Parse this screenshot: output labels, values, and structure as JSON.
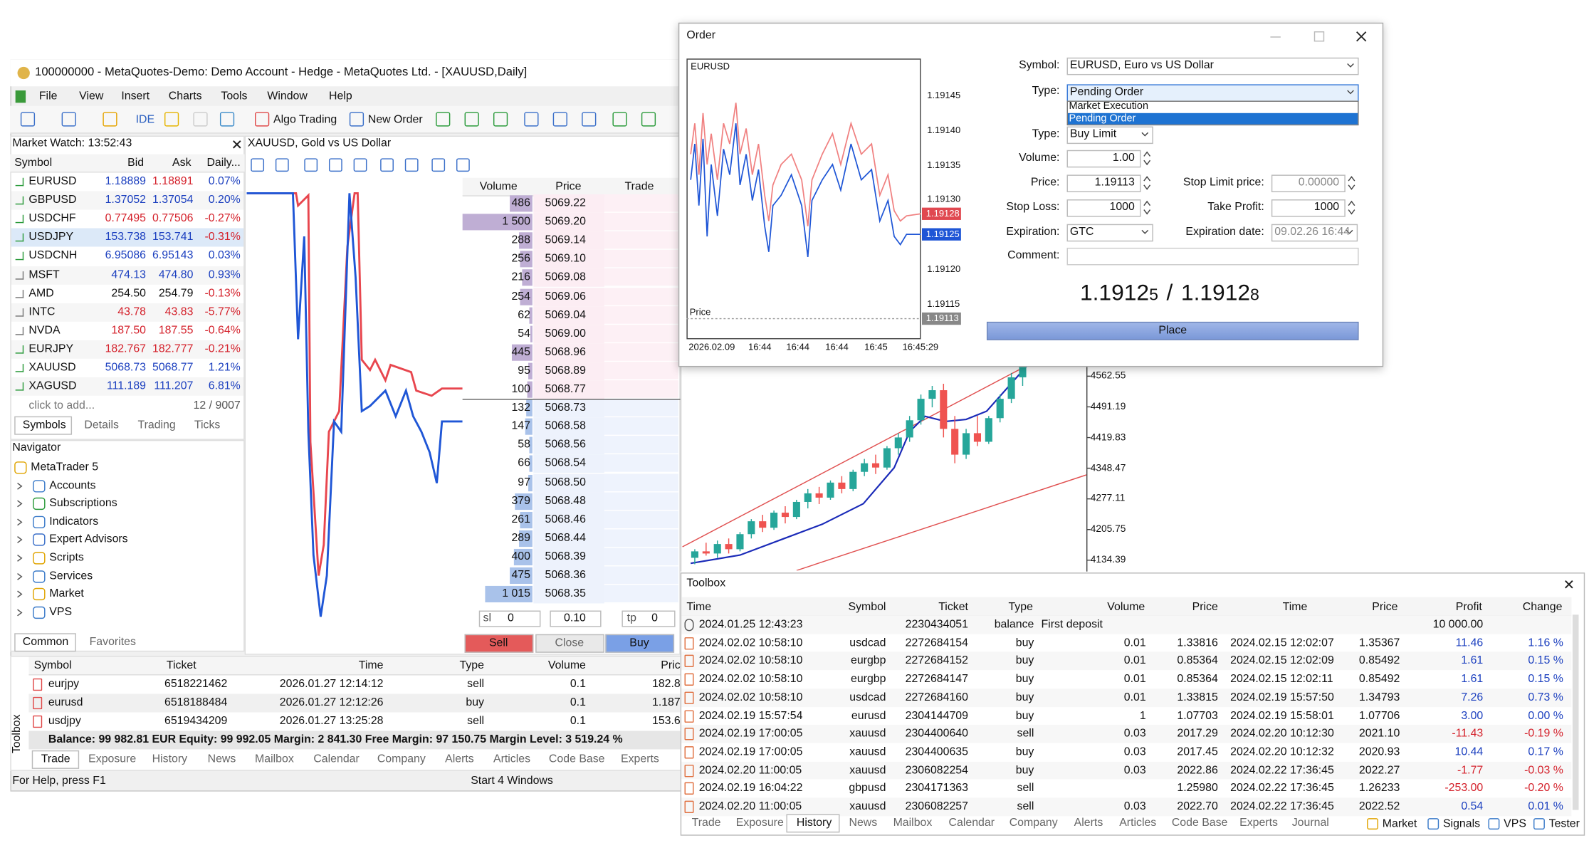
{
  "main_window": {
    "title": "100000000 - MetaQuotes-Demo: Demo Account - Hedge - MetaQuotes Ltd. - [XAUUSD,Daily]",
    "menu": [
      "File",
      "View",
      "Insert",
      "Charts",
      "Tools",
      "Window",
      "Help"
    ],
    "toolbar": [
      "IDE",
      "Algo Trading",
      "New Order"
    ],
    "market_watch": {
      "title": "Market Watch: 13:52:43",
      "columns": [
        "Symbol",
        "Bid",
        "Ask",
        "Daily..."
      ],
      "rows": [
        [
          "EURUSD",
          "1.18889",
          "1.18891",
          "0.07%"
        ],
        [
          "GBPUSD",
          "1.37052",
          "1.37054",
          "0.20%"
        ],
        [
          "USDCHF",
          "0.77495",
          "0.77506",
          "-0.27%"
        ],
        [
          "USDJPY",
          "153.738",
          "153.741",
          "-0.31%"
        ],
        [
          "USDCNH",
          "6.95086",
          "6.95143",
          "0.03%"
        ],
        [
          "MSFT",
          "474.13",
          "474.80",
          "0.93%"
        ],
        [
          "AMD",
          "254.50",
          "254.79",
          "-0.13%"
        ],
        [
          "INTC",
          "43.78",
          "43.83",
          "-5.77%"
        ],
        [
          "NVDA",
          "187.50",
          "187.55",
          "-0.64%"
        ],
        [
          "EURJPY",
          "182.767",
          "182.777",
          "-0.21%"
        ],
        [
          "XAUUSD",
          "5068.73",
          "5068.77",
          "1.21%"
        ],
        [
          "XAGUSD",
          "111.189",
          "111.207",
          "6.81%"
        ]
      ],
      "add": "click to add...",
      "count": "12 / 9007",
      "tabs": [
        "Symbols",
        "Details",
        "Trading",
        "Ticks"
      ]
    },
    "navigator": {
      "title": "Navigator",
      "items": [
        "MetaTrader 5",
        "Accounts",
        "Subscriptions",
        "Indicators",
        "Expert Advisors",
        "Scripts",
        "Services",
        "Market",
        "VPS"
      ],
      "tabs": [
        "Common",
        "Favorites"
      ]
    },
    "chart": {
      "title": "XAUUSD, Gold vs US Dollar"
    },
    "depth_of_market": {
      "columns": [
        "Volume",
        "Price",
        "Trade"
      ],
      "rows": [
        {
          "volume": 486,
          "price": "5069.22"
        },
        {
          "volume": {
            "value": 1500,
            "label": "1 500"
          },
          "price": "5069.20"
        },
        {
          "volume": 288,
          "price": "5069.14"
        },
        {
          "volume": 256,
          "price": "5069.10"
        },
        {
          "volume": 216,
          "price": "5069.08"
        },
        {
          "volume": 254,
          "price": "5069.06"
        },
        {
          "volume": 62,
          "price": "5069.04"
        },
        {
          "volume": 54,
          "price": "5069.00"
        },
        {
          "volume": 445,
          "price": "5068.96"
        },
        {
          "volume": 95,
          "price": "5068.89"
        },
        {
          "volume": 100,
          "price": "5068.77"
        },
        {
          "volume": 132,
          "price": "5068.73"
        },
        {
          "volume": 147,
          "price": "5068.58"
        },
        {
          "volume": 58,
          "price": "5068.56"
        },
        {
          "volume": 66,
          "price": "5068.54"
        },
        {
          "volume": 97,
          "price": "5068.50"
        },
        {
          "volume": 379,
          "price": "5068.48"
        },
        {
          "volume": 261,
          "price": "5068.46"
        },
        {
          "volume": 289,
          "price": "5068.44"
        },
        {
          "volume": 400,
          "price": "5068.39"
        },
        {
          "volume": 475,
          "price": "5068.36"
        },
        {
          "volume": {
            "value": 1015,
            "label": "1 015"
          },
          "price": "5068.35"
        }
      ],
      "sell_rows": 11,
      "sl_label": "sl",
      "sl_value": "0",
      "lot": "0.10",
      "tp_label": "tp",
      "tp_value": "0",
      "buttons": [
        "Sell",
        "Close",
        "Buy"
      ]
    },
    "trade": {
      "columns": [
        "Symbol",
        "Ticket",
        "Time",
        "Type",
        "Volume",
        "Price"
      ],
      "rows": [
        [
          "eurjpy",
          "6518221462",
          "2026.01.27 12:14:12",
          "sell",
          "0.1",
          "182.8"
        ],
        [
          "eurusd",
          "6518188484",
          "2026.01.27 12:12:26",
          "buy",
          "0.1",
          "1.187"
        ],
        [
          "usdjpy",
          "6519434209",
          "2026.01.27 13:25:28",
          "sell",
          "0.1",
          "153.6"
        ]
      ],
      "balance": "Balance: 99 982.81 EUR  Equity: 99 992.05  Margin: 2 841.30  Free Margin: 97 150.75  Margin Level: 3 519.24 %",
      "side_label": "Toolbox",
      "tabs": [
        "Trade",
        "Exposure",
        "History",
        "News",
        "Mailbox",
        "Calendar",
        "Company",
        "Alerts",
        "Articles",
        "Code Base",
        "Experts"
      ]
    },
    "status": [
      "For Help, press F1",
      "Start 4 Windows"
    ]
  },
  "background_chart": {
    "type": "candlestick",
    "ylim": [
      4110.47,
      4586.47
    ],
    "yticks": [
      {
        "value": 4562.55,
        "label": "4562.55"
      },
      {
        "value": 4491.19,
        "label": "4491.19"
      },
      {
        "value": 4419.83,
        "label": "4419.83"
      },
      {
        "value": 4348.47,
        "label": "4348.47"
      },
      {
        "value": 4277.11,
        "label": "4277.11"
      },
      {
        "value": 4205.75,
        "label": "4205.75"
      },
      {
        "value": 4134.39,
        "label": "4134.39"
      }
    ],
    "colors": {
      "up": "#26a69a",
      "down": "#ef5350"
    },
    "candles": [
      [
        4140,
        4160,
        4125,
        4155
      ],
      [
        4155,
        4175,
        4145,
        4150
      ],
      [
        4150,
        4180,
        4140,
        4172
      ],
      [
        4172,
        4185,
        4150,
        4160
      ],
      [
        4160,
        4200,
        4155,
        4195
      ],
      [
        4195,
        4230,
        4185,
        4225
      ],
      [
        4225,
        4240,
        4200,
        4210
      ],
      [
        4210,
        4250,
        4205,
        4245
      ],
      [
        4245,
        4260,
        4220,
        4235
      ],
      [
        4235,
        4275,
        4230,
        4270
      ],
      [
        4270,
        4300,
        4255,
        4290
      ],
      [
        4290,
        4305,
        4265,
        4280
      ],
      [
        4280,
        4320,
        4275,
        4315
      ],
      [
        4315,
        4330,
        4290,
        4300
      ],
      [
        4300,
        4345,
        4295,
        4340
      ],
      [
        4340,
        4370,
        4330,
        4360
      ],
      [
        4360,
        4380,
        4335,
        4350
      ],
      [
        4350,
        4400,
        4345,
        4395
      ],
      [
        4395,
        4430,
        4380,
        4420
      ],
      [
        4420,
        4470,
        4410,
        4460
      ],
      [
        4460,
        4520,
        4450,
        4510
      ],
      [
        4510,
        4540,
        4490,
        4530
      ],
      [
        4530,
        4545,
        4420,
        4440
      ],
      [
        4440,
        4470,
        4360,
        4380
      ],
      [
        4380,
        4440,
        4370,
        4430
      ],
      [
        4430,
        4470,
        4400,
        4410
      ],
      [
        4410,
        4470,
        4405,
        4465
      ],
      [
        4465,
        4520,
        4455,
        4510
      ],
      [
        4510,
        4570,
        4500,
        4560
      ],
      [
        4560,
        4600,
        4540,
        4590
      ]
    ]
  },
  "order_dialog": {
    "title": "Order",
    "mini_chart": {
      "symbol": "EURUSD",
      "price_ticks": [
        "1.19145",
        "1.19140",
        "1.19135",
        "1.19130",
        "1.19120",
        "1.19115"
      ],
      "ask_marker": "1.19128",
      "bid_marker": "1.19125",
      "last_marker": "1.19113",
      "price_label": "Price",
      "time_labels": [
        "2026.02.09",
        "16:44",
        "16:44",
        "16:44",
        "16:45",
        "16:45:29"
      ]
    },
    "fields": {
      "symbol_label": "Symbol:",
      "symbol": "EURUSD, Euro vs US Dollar",
      "type_label": "Type:",
      "type": "Pending Order",
      "type_options": [
        "Market Execution",
        "Pending Order"
      ],
      "order_type_label": "Type:",
      "order_type": "Buy Limit",
      "volume_label": "Volume:",
      "volume": "1.00",
      "price_label": "Price:",
      "price": "1.19113",
      "stop_limit_label": "Stop Limit price:",
      "stop_limit": "0.00000",
      "sl_label": "Stop Loss:",
      "sl": "1000",
      "tp_label": "Take Profit:",
      "tp": "1000",
      "expiration_label": "Expiration:",
      "expiration": "GTC",
      "expiration_date_label": "Expiration date:",
      "expiration_date": "09.02.26 16:44",
      "comment_label": "Comment:"
    },
    "quote": {
      "bid": "1.1912",
      "bid_small": "5",
      "sep": "/",
      "ask": "1.1912",
      "ask_small": "8"
    },
    "button": "Place"
  },
  "toolbox": {
    "title": "Toolbox",
    "columns": [
      "Time",
      "Symbol",
      "Ticket",
      "Type",
      "Volume",
      "Price",
      "Time",
      "Price",
      "Profit",
      "Change"
    ],
    "rows": [
      [
        "2024.01.25 12:43:23",
        null,
        "2230434051",
        "balance",
        "First deposit",
        null,
        null,
        null,
        "10 000.00",
        null
      ],
      [
        "2024.02.02 10:58:10",
        "usdcad",
        "2272684154",
        "buy",
        "0.01",
        "1.33816",
        "2024.02.15 12:02:07",
        "1.35367",
        "11.46",
        "1.16 %"
      ],
      [
        "2024.02.02 10:58:10",
        "eurgbp",
        "2272684152",
        "buy",
        "0.01",
        "0.85364",
        "2024.02.15 12:02:09",
        "0.85492",
        "1.61",
        "0.15 %"
      ],
      [
        "2024.02.02 10:58:10",
        "eurgbp",
        "2272684147",
        "buy",
        "0.01",
        "0.85364",
        "2024.02.15 12:02:11",
        "0.85492",
        "1.61",
        "0.15 %"
      ],
      [
        "2024.02.02 10:58:10",
        "usdcad",
        "2272684160",
        "buy",
        "0.01",
        "1.33815",
        "2024.02.19 15:57:50",
        "1.34793",
        "7.26",
        "0.73 %"
      ],
      [
        "2024.02.19 15:57:54",
        "eurusd",
        "2304144709",
        "buy",
        "1",
        "1.07703",
        "2024.02.19 15:58:01",
        "1.07706",
        "3.00",
        "0.00 %"
      ],
      [
        "2024.02.19 17:00:05",
        "xauusd",
        "2304400640",
        "sell",
        "0.03",
        "2017.29",
        "2024.02.20 10:12:30",
        "2021.10",
        "-11.43",
        "-0.19 %"
      ],
      [
        "2024.02.19 17:00:05",
        "xauusd",
        "2304400635",
        "buy",
        "0.03",
        "2017.45",
        "2024.02.20 10:12:32",
        "2020.93",
        "10.44",
        "0.17 %"
      ],
      [
        "2024.02.20 11:00:05",
        "xauusd",
        "2306082254",
        "buy",
        "0.03",
        "2022.86",
        "2024.02.22 17:36:45",
        "2022.27",
        "-1.77",
        "-0.03 %"
      ],
      [
        "2024.02.19 16:04:22",
        "gbpusd",
        "2304171363",
        "sell",
        null,
        "1.25980",
        "2024.02.22 17:36:45",
        "1.26233",
        "-253.00",
        "-0.20 %"
      ],
      [
        "2024.02.20 11:00:05",
        "xauusd",
        "2306082257",
        "sell",
        "0.03",
        "2022.70",
        "2024.02.22 17:36:45",
        "2022.52",
        "0.54",
        "0.01 %"
      ]
    ],
    "tabs": [
      "Trade",
      "Exposure",
      "History",
      "News",
      "Mailbox",
      "Calendar",
      "Company",
      "Alerts",
      "Articles",
      "Code Base",
      "Experts",
      "Journal"
    ],
    "services": [
      "Market",
      "Signals",
      "VPS",
      "Tester"
    ]
  }
}
